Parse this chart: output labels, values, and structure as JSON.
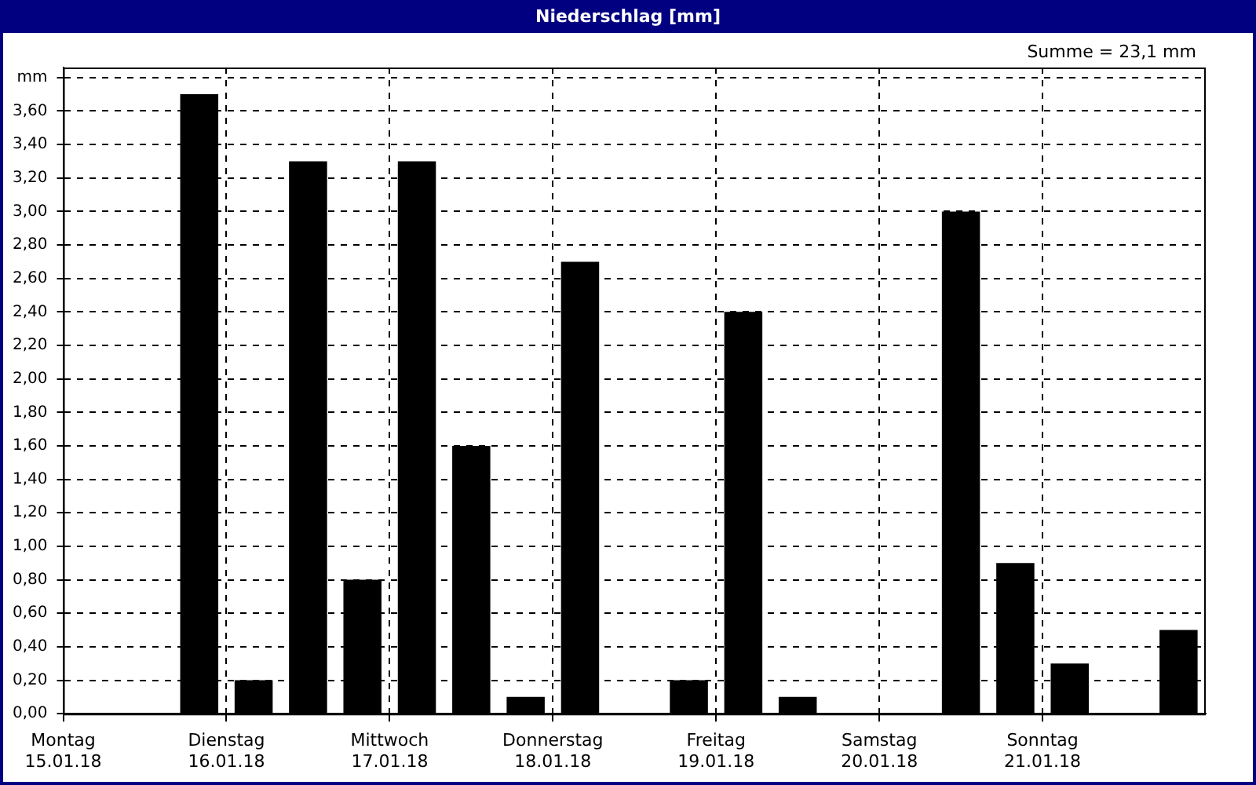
{
  "chart_data": {
    "type": "bar",
    "title": "Niederschlag [mm]",
    "annotations": [
      "Summe = 23,1 mm"
    ],
    "x": [
      "--01-15T20:00",
      "--01-16T04:00",
      "--01-16T12:00",
      "--01-16T20:00",
      "--01-17T04:00",
      "--01-17T12:00",
      "--01-17T20:00",
      "--01-18T04:00",
      "--01-18T20:00",
      "--01-19T04:00",
      "--01-19T12:00",
      "--01-20T12:00",
      "--01-20T20:00",
      "--01-21T04:00",
      "--01-21T20:00"
    ],
    "values": [
      3.7,
      0.2,
      3.3,
      0.8,
      3.3,
      1.6,
      0.1,
      2.7,
      0.2,
      2.4,
      0.1,
      3.0,
      0.9,
      0.3,
      0.5
    ],
    "color": "#000000",
    "xlim": [
      "--01-15",
      "--01-22"
    ],
    "xticks": [
      {
        "value": "--01-15",
        "label": "Montag 15.01.18"
      },
      {
        "value": "--01-16",
        "label": "Dienstag 16.01.18"
      },
      {
        "value": "--01-17",
        "label": "Mittwoch 17.01.18"
      },
      {
        "value": "--01-18",
        "label": "Donnerstag 18.01.18"
      },
      {
        "value": "--01-19",
        "label": "Freitag 19.01.18"
      },
      {
        "value": "--01-20",
        "label": "Samstag 20.01.18"
      },
      {
        "value": "--01-21",
        "label": "Sonntag 21.01.18"
      }
    ],
    "ylim": [
      0,
      3.86
    ],
    "yticks": [
      {
        "value": 0,
        "label": "0,00"
      },
      {
        "value": 0.2,
        "label": "0,20"
      },
      {
        "value": 0.4,
        "label": "0,40"
      },
      {
        "value": 0.6,
        "label": "0,60"
      },
      {
        "value": 0.8,
        "label": "0,80"
      },
      {
        "value": 1.0,
        "label": "1,00"
      },
      {
        "value": 1.2,
        "label": "1,20"
      },
      {
        "value": 1.4,
        "label": "1,40"
      },
      {
        "value": 1.6,
        "label": "1,60"
      },
      {
        "value": 1.8,
        "label": "1,80"
      },
      {
        "value": 2.0,
        "label": "2,00"
      },
      {
        "value": 2.2,
        "label": "2,20"
      },
      {
        "value": 2.4,
        "label": "2,40"
      },
      {
        "value": 2.6,
        "label": "2,60"
      },
      {
        "value": 2.8,
        "label": "2,80"
      },
      {
        "value": 3.0,
        "label": "3,00"
      },
      {
        "value": 3.2,
        "label": "3,20"
      },
      {
        "value": 3.4,
        "label": "3,40"
      },
      {
        "value": 3.6,
        "label": "3,60"
      },
      {
        "value": 3.8,
        "label": "mm"
      }
    ],
    "grid": true,
    "legend": false
  }
}
